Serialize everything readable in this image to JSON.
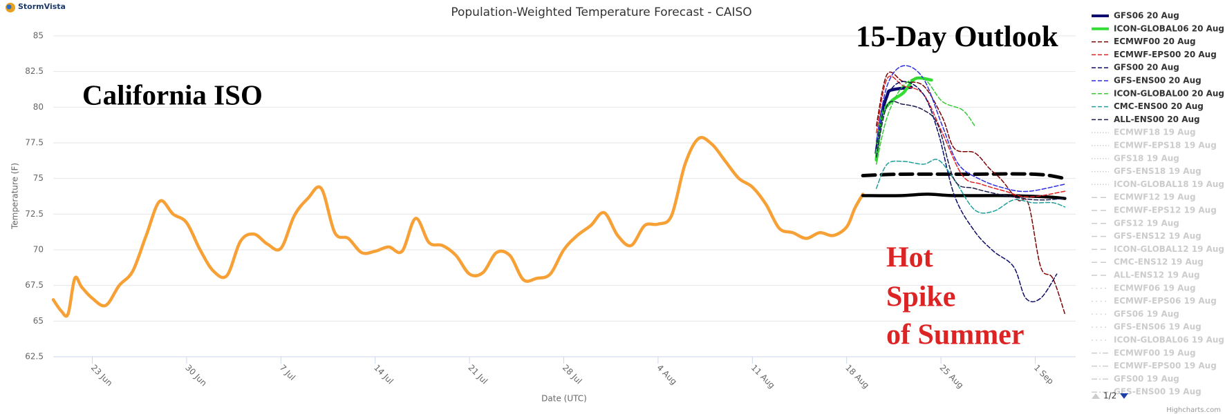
{
  "chart_data": {
    "type": "line",
    "logo": "StormVista",
    "title": "Population-Weighted Temperature Forecast - CAISO",
    "y_label": "Temperature (F)",
    "x_label": "Date (UTC)",
    "credits": "Highcharts.com",
    "grid": true,
    "legend": {
      "position": "right",
      "page": "1/2"
    },
    "ylim": [
      62.5,
      85
    ],
    "yticks": [
      62.5,
      65,
      67.5,
      70,
      72.5,
      75,
      77.5,
      80,
      82.5,
      85
    ],
    "xlim": [
      -2.9,
      73.0
    ],
    "xticks": [
      {
        "value": 0,
        "label": "23 Jun"
      },
      {
        "value": 7,
        "label": "30 Jun"
      },
      {
        "value": 14,
        "label": "7 Jul"
      },
      {
        "value": 21,
        "label": "14 Jul"
      },
      {
        "value": 28,
        "label": "21 Jul"
      },
      {
        "value": 35,
        "label": "28 Jul"
      },
      {
        "value": 42,
        "label": "4 Aug"
      },
      {
        "value": 49,
        "label": "11 Aug"
      },
      {
        "value": 56,
        "label": "18 Aug"
      },
      {
        "value": 63,
        "label": "25 Aug"
      },
      {
        "value": 70,
        "label": "1 Sep"
      }
    ],
    "annotations": [
      {
        "text": "15-Day Outlook",
        "color": "#000000"
      },
      {
        "text": "California ISO",
        "color": "#000000"
      },
      {
        "lines": [
          "Hot",
          "Spike",
          "of Summer"
        ],
        "color": "#dd2424"
      }
    ],
    "series": [
      {
        "color": "#f7a035",
        "style": "solid-thick",
        "x": [
          -2.9,
          -2.3,
          -1.8,
          -1.3,
          -0.8,
          0,
          1,
          2,
          3,
          4,
          5,
          6,
          7,
          8,
          9,
          10,
          11,
          12,
          13,
          14,
          15,
          16,
          17,
          18,
          19,
          20,
          21,
          22,
          23,
          24,
          25,
          26,
          27,
          28,
          29,
          30,
          31,
          32,
          33,
          34,
          35,
          36,
          37,
          38,
          39,
          40,
          41,
          42,
          43,
          44,
          45,
          46,
          47,
          48,
          49,
          50,
          51,
          52,
          53,
          54,
          55,
          56,
          56.6,
          57.2
        ],
        "values": [
          66.5,
          65.7,
          65.5,
          68.0,
          67.4,
          66.6,
          66.1,
          67.5,
          68.5,
          71.0,
          73.4,
          72.5,
          71.9,
          70.0,
          68.5,
          68.2,
          70.6,
          71.1,
          70.4,
          70.1,
          72.4,
          73.6,
          74.3,
          71.2,
          70.8,
          69.8,
          69.9,
          70.2,
          69.9,
          72.2,
          70.5,
          70.3,
          69.6,
          68.3,
          68.4,
          69.8,
          69.6,
          67.9,
          68.0,
          68.3,
          70.0,
          71.0,
          71.7,
          72.6,
          71.0,
          70.3,
          71.7,
          71.8,
          72.4,
          76.0,
          77.8,
          77.4,
          76.2,
          75.0,
          74.4,
          73.2,
          71.5,
          71.2,
          70.8,
          71.2,
          71.0,
          71.6,
          72.9,
          73.9
        ]
      },
      {
        "color": "#000000",
        "style": "dash-thick",
        "x": [
          57.2,
          60,
          65,
          70,
          72.2
        ],
        "values": [
          75.2,
          75.3,
          75.3,
          75.3,
          75.0
        ]
      },
      {
        "color": "#000000",
        "style": "solid-thick",
        "x": [
          57.2,
          60,
          62,
          64,
          68,
          71,
          72.2
        ],
        "values": [
          73.8,
          73.8,
          73.9,
          73.8,
          73.8,
          73.7,
          73.6
        ]
      },
      {
        "name": "GFS06 20 Aug",
        "color": "#0c0c70",
        "style": "solid-thick",
        "x": [
          58.2,
          58.6,
          59.0,
          59.3,
          60.8
        ],
        "values": [
          76.8,
          79.5,
          80.8,
          81.2,
          81.4
        ]
      },
      {
        "name": "ICON-GLOBAL06 20 Aug",
        "color": "#33dd33",
        "style": "solid-thick",
        "x": [
          58.2,
          58.6,
          59.3,
          60.2,
          61.1,
          62.3
        ],
        "values": [
          76.3,
          79.3,
          80.4,
          81.0,
          82.0,
          81.9
        ]
      },
      {
        "name": "ECMWF00 20 Aug",
        "color": "#7a0000",
        "style": "dash",
        "x": [
          58.2,
          59.0,
          60.2,
          61.7,
          63.1,
          64.0,
          65.5,
          66.6,
          67.5,
          68.7,
          69.5,
          70.4,
          71.3,
          72.2
        ],
        "values": [
          78.7,
          82.3,
          81.8,
          81.5,
          79.3,
          77.1,
          76.8,
          75.7,
          74.9,
          73.5,
          73.2,
          68.8,
          68.0,
          65.5
        ]
      },
      {
        "name": "ECMWF-EPS00 20 Aug",
        "color": "#e02020",
        "style": "dash",
        "x": [
          58.2,
          59.0,
          60.2,
          61.7,
          63.1,
          64.6,
          66.0,
          67.8,
          69.5,
          72.2
        ],
        "values": [
          78.2,
          82.0,
          81.5,
          80.9,
          78.2,
          75.2,
          74.6,
          74.1,
          73.7,
          74.1
        ]
      },
      {
        "name": "GFS00 20 Aug",
        "color": "#0a0a66",
        "style": "dash",
        "x": [
          58.2,
          59.0,
          60.2,
          61.7,
          62.8,
          64.0,
          65.5,
          66.9,
          68.4,
          69.3,
          70.4,
          71.6
        ],
        "values": [
          77.1,
          80.7,
          81.8,
          80.9,
          78.2,
          73.8,
          71.3,
          69.9,
          68.8,
          66.6,
          66.6,
          68.3
        ]
      },
      {
        "name": "GFS-ENS00 20 Aug",
        "color": "#2a2ae0",
        "style": "dash",
        "x": [
          58.2,
          59.0,
          60.2,
          61.7,
          63.1,
          64.3,
          66.0,
          67.8,
          69.5,
          72.2
        ],
        "values": [
          77.6,
          81.5,
          82.9,
          82.0,
          78.7,
          76.0,
          74.9,
          74.3,
          74.1,
          74.6
        ]
      },
      {
        "name": "ICON-GLOBAL00 20 Aug",
        "color": "#33cc33",
        "style": "dash",
        "x": [
          58.2,
          59.0,
          60.2,
          61.7,
          63.1,
          64.6,
          65.5
        ],
        "values": [
          76.0,
          79.3,
          81.5,
          82.0,
          80.4,
          79.8,
          78.7
        ]
      },
      {
        "name": "CMC-ENS00 20 Aug",
        "color": "#1f9e9a",
        "style": "dash",
        "x": [
          58.2,
          59.0,
          60.2,
          61.7,
          62.8,
          64.0,
          65.5,
          66.9,
          68.4,
          69.8,
          71.3,
          72.2
        ],
        "values": [
          74.3,
          76.0,
          76.2,
          76.0,
          76.3,
          74.9,
          72.8,
          72.7,
          73.5,
          73.3,
          73.3,
          73.0
        ]
      },
      {
        "name": "ALL-ENS00 20 Aug",
        "color": "#1b1b4d",
        "style": "dash",
        "x": [
          58.2,
          59.0,
          60.2,
          61.7,
          62.8,
          64.0,
          65.5,
          67.8,
          70.1,
          72.2
        ],
        "values": [
          76.5,
          80.1,
          80.2,
          79.8,
          78.7,
          74.9,
          74.3,
          73.8,
          73.5,
          73.6
        ]
      },
      {
        "name": "ECMWF18 19 Aug",
        "style": "shortdot",
        "visible": false,
        "x": [],
        "values": []
      },
      {
        "name": "ECMWF-EPS18 19 Aug",
        "style": "shortdot",
        "visible": false,
        "x": [],
        "values": []
      },
      {
        "name": "GFS18 19 Aug",
        "style": "shortdot",
        "visible": false,
        "x": [],
        "values": []
      },
      {
        "name": "GFS-ENS18 19 Aug",
        "style": "shortdot",
        "visible": false,
        "x": [],
        "values": []
      },
      {
        "name": "ICON-GLOBAL18 19 Aug",
        "style": "shortdot",
        "visible": false,
        "x": [],
        "values": []
      },
      {
        "name": "ECMWF12 19 Aug",
        "style": "longdash",
        "visible": false,
        "x": [],
        "values": []
      },
      {
        "name": "ECMWF-EPS12 19 Aug",
        "style": "longdash",
        "visible": false,
        "x": [],
        "values": []
      },
      {
        "name": "GFS12 19 Aug",
        "style": "longdash",
        "visible": false,
        "x": [],
        "values": []
      },
      {
        "name": "GFS-ENS12 19 Aug",
        "style": "longdash",
        "visible": false,
        "x": [],
        "values": []
      },
      {
        "name": "ICON-GLOBAL12 19 Aug",
        "style": "longdash",
        "visible": false,
        "x": [],
        "values": []
      },
      {
        "name": "CMC-ENS12 19 Aug",
        "style": "longdash",
        "visible": false,
        "x": [],
        "values": []
      },
      {
        "name": "ALL-ENS12 19 Aug",
        "style": "longdash",
        "visible": false,
        "x": [],
        "values": []
      },
      {
        "name": "ECMWF06 19 Aug",
        "style": "dot",
        "visible": false,
        "x": [],
        "values": []
      },
      {
        "name": "ECMWF-EPS06 19 Aug",
        "style": "dot",
        "visible": false,
        "x": [],
        "values": []
      },
      {
        "name": "GFS06 19 Aug",
        "style": "dot",
        "visible": false,
        "x": [],
        "values": []
      },
      {
        "name": "GFS-ENS06 19 Aug",
        "style": "dot",
        "visible": false,
        "x": [],
        "values": []
      },
      {
        "name": "ICON-GLOBAL06 19 Aug",
        "style": "dot",
        "visible": false,
        "x": [],
        "values": []
      },
      {
        "name": "ECMWF00 19 Aug",
        "style": "dashdot",
        "visible": false,
        "x": [],
        "values": []
      },
      {
        "name": "ECMWF-EPS00 19 Aug",
        "style": "dashdot",
        "visible": false,
        "x": [],
        "values": []
      },
      {
        "name": "GFS00 19 Aug",
        "style": "dashdot",
        "visible": false,
        "x": [],
        "values": []
      },
      {
        "name": "GFS-ENS00 19 Aug",
        "style": "dashdot",
        "visible": false,
        "x": [],
        "values": []
      }
    ]
  }
}
